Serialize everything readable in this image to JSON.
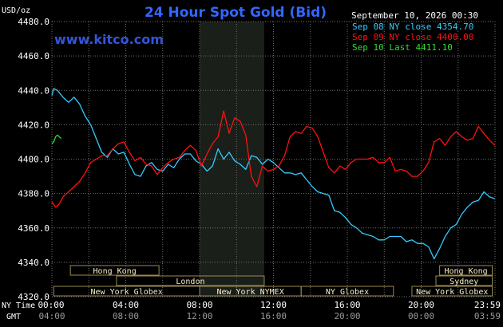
{
  "header": {
    "y_unit": "USD/oz",
    "title": "24 Hour Spot Gold (Bid)",
    "timestamp": "September 10, 2026 00:30",
    "site": "www.kitco.com"
  },
  "colors": {
    "background": "#000000",
    "grid": "#707070",
    "title": "#3366ff",
    "site": "#3355dd",
    "text": "#ffffff",
    "session_fill": "#f7efc6",
    "session_border": "#9a8a50",
    "nymex_shade": "#1a1f1a",
    "sep08": "#33ccff",
    "sep09": "#ff1111",
    "sep10": "#33dd33"
  },
  "axis": {
    "time_label_ny": "NY Time",
    "time_label_gmt": "GMT",
    "ny_ticks": [
      "00:00",
      "04:00",
      "08:00",
      "12:00",
      "16:00",
      "20:00",
      "23:59"
    ],
    "gmt_ticks": [
      "04:00",
      "08:00",
      "12:00",
      "16:00",
      "20:00",
      "00:00",
      "03:59"
    ]
  },
  "sessions": [
    {
      "label": "Hong Kong",
      "row": 0,
      "start": 1.0,
      "end": 5.8
    },
    {
      "label": "Hong Kong",
      "row": 0,
      "start": 21.0,
      "end": 23.85
    },
    {
      "label": "London",
      "row": 1,
      "start": 3.5,
      "end": 11.5
    },
    {
      "label": "Sydney",
      "row": 1,
      "start": 20.8,
      "end": 23.85
    },
    {
      "label": "New York Globex",
      "row": 2,
      "start": 0.1,
      "end": 8.0
    },
    {
      "label": "New York NYMEX",
      "row": 2,
      "start": 8.0,
      "end": 13.5
    },
    {
      "label": "NY Globex",
      "row": 2,
      "start": 13.5,
      "end": 18.5
    },
    {
      "label": "New York Globex",
      "row": 2,
      "start": 19.5,
      "end": 23.85
    }
  ],
  "chart_data": {
    "type": "line",
    "title": "24 Hour Spot Gold (Bid)",
    "ylabel": "USD/oz",
    "xlabel": "NY Time",
    "xlim": [
      0,
      24
    ],
    "ylim": [
      4320,
      4480
    ],
    "y_ticks": [
      4320.0,
      4340.0,
      4360.0,
      4380.0,
      4400.0,
      4420.0,
      4440.0,
      4460.0,
      4480.0
    ],
    "nymex_shaded": [
      8.0,
      11.5
    ],
    "grid": true,
    "legend_position": "top-right",
    "series": [
      {
        "name": "Sep 08 NY close 4354.70",
        "color": "#33ccff",
        "x": [
          0.0,
          0.1,
          0.3,
          0.6,
          0.9,
          1.2,
          1.5,
          1.8,
          2.1,
          2.4,
          2.7,
          3.0,
          3.3,
          3.6,
          3.9,
          4.2,
          4.5,
          4.8,
          5.1,
          5.4,
          5.7,
          6.0,
          6.3,
          6.6,
          6.9,
          7.2,
          7.5,
          7.8,
          8.1,
          8.4,
          8.7,
          9.0,
          9.3,
          9.6,
          9.9,
          10.2,
          10.5,
          10.8,
          11.1,
          11.4,
          11.7,
          12.0,
          12.3,
          12.6,
          12.9,
          13.2,
          13.5,
          13.8,
          14.1,
          14.4,
          14.7,
          15.0,
          15.3,
          15.6,
          15.9,
          16.2,
          16.5,
          16.8,
          17.1,
          17.4,
          17.7,
          18.0,
          18.3,
          18.6,
          18.9,
          19.2,
          19.5,
          19.8,
          20.1,
          20.4,
          20.7,
          21.0,
          21.3,
          21.6,
          21.9,
          22.2,
          22.5,
          22.8,
          23.1,
          23.4,
          23.7,
          23.99
        ],
        "values": [
          4437,
          4441,
          4440,
          4436,
          4433,
          4436,
          4432,
          4425,
          4420,
          4412,
          4404,
          4401,
          4406,
          4403,
          4404,
          4397,
          4391,
          4390,
          4396,
          4398,
          4394,
          4393,
          4397,
          4395,
          4400,
          4403,
          4403,
          4399,
          4397,
          4393,
          4396,
          4406,
          4400,
          4404,
          4399,
          4397,
          4394,
          4402,
          4401,
          4397,
          4400,
          4398,
          4395,
          4392,
          4392,
          4391,
          4392,
          4388,
          4384,
          4381,
          4380,
          4379,
          4370,
          4369,
          4366,
          4362,
          4360,
          4357,
          4356,
          4355,
          4353,
          4353,
          4355,
          4355,
          4355,
          4352,
          4353,
          4351,
          4351,
          4349,
          4342,
          4348,
          4355,
          4360,
          4362,
          4368,
          4372,
          4375,
          4376,
          4381,
          4378,
          4377
        ]
      },
      {
        "name": "Sep 09 NY close 4400.00",
        "color": "#ff1111",
        "x": [
          0.0,
          0.2,
          0.4,
          0.6,
          0.9,
          1.2,
          1.5,
          1.8,
          2.1,
          2.4,
          2.7,
          3.0,
          3.3,
          3.6,
          3.9,
          4.2,
          4.5,
          4.8,
          5.1,
          5.4,
          5.7,
          6.0,
          6.3,
          6.6,
          6.9,
          7.2,
          7.5,
          7.8,
          8.1,
          8.4,
          8.7,
          9.0,
          9.3,
          9.6,
          9.9,
          10.2,
          10.5,
          10.8,
          11.1,
          11.4,
          11.7,
          12.0,
          12.3,
          12.6,
          12.9,
          13.2,
          13.5,
          13.8,
          14.1,
          14.4,
          14.7,
          15.0,
          15.3,
          15.6,
          15.9,
          16.2,
          16.5,
          16.8,
          17.1,
          17.4,
          17.7,
          18.0,
          18.3,
          18.6,
          18.9,
          19.2,
          19.5,
          19.8,
          20.1,
          20.4,
          20.7,
          21.0,
          21.3,
          21.6,
          21.9,
          22.2,
          22.5,
          22.8,
          23.1,
          23.4,
          23.7,
          23.99
        ],
        "values": [
          4375,
          4372,
          4374,
          4378,
          4381,
          4384,
          4387,
          4392,
          4398,
          4400,
          4402,
          4402,
          4406,
          4409,
          4410,
          4404,
          4399,
          4401,
          4397,
          4396,
          4391,
          4395,
          4398,
          4400,
          4401,
          4405,
          4408,
          4405,
          4396,
          4403,
          4409,
          4413,
          4428,
          4415,
          4424,
          4422,
          4414,
          4390,
          4384,
          4396,
          4393,
          4394,
          4396,
          4402,
          4413,
          4416,
          4415,
          4419,
          4418,
          4413,
          4404,
          4395,
          4392,
          4396,
          4394,
          4398,
          4400,
          4400,
          4400,
          4401,
          4398,
          4398,
          4401,
          4393,
          4394,
          4393,
          4390,
          4390,
          4393,
          4398,
          4410,
          4412,
          4408,
          4413,
          4416,
          4413,
          4411,
          4412,
          4419,
          4415,
          4411,
          4408
        ]
      },
      {
        "name": "Sep 10 Last 4411.10",
        "color": "#33dd33",
        "x": [
          0.0,
          0.1,
          0.2,
          0.3,
          0.4,
          0.5
        ],
        "values": [
          4409,
          4410,
          4413,
          4414,
          4413,
          4412
        ]
      }
    ]
  }
}
